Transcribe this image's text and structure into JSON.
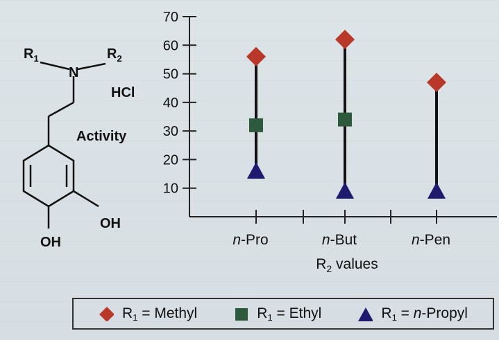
{
  "structure": {
    "r1_label": "R",
    "r1_sub": "1",
    "r2_label": "R",
    "r2_sub": "2",
    "n_label": "N",
    "salt_label": "HCl",
    "activity_label": "Activity",
    "oh_upper": "OH",
    "oh_lower": "OH"
  },
  "chart_data": {
    "type": "dot-range",
    "xlabel": "R2 values",
    "ylabel": "",
    "ylim": [
      0,
      70
    ],
    "y_ticks": [
      10,
      20,
      30,
      40,
      50,
      60,
      70
    ],
    "categories": [
      "n-Pro",
      "n-But",
      "n-Pen"
    ],
    "series": [
      {
        "name": "R1 = Methyl",
        "marker": "diamond",
        "color": "#b8382a",
        "values": [
          56,
          62,
          47
        ]
      },
      {
        "name": "R1 = Ethyl",
        "marker": "square",
        "color": "#2d5a3c",
        "values": [
          32,
          34,
          null
        ]
      },
      {
        "name": "R1 = n-Propyl",
        "marker": "triangle",
        "color": "#1e1a6e",
        "values": [
          16,
          9,
          9
        ]
      }
    ]
  },
  "legend": {
    "items": [
      {
        "prefix": "R",
        "sub": "1",
        "text": " = Methyl",
        "marker": "diamond",
        "color": "#b8382a"
      },
      {
        "prefix": "R",
        "sub": "1",
        "text": " = Ethyl",
        "marker": "square",
        "color": "#2d5a3c"
      },
      {
        "prefix": "R",
        "sub": "1",
        "text": " = n-Propyl",
        "marker": "triangle",
        "color": "#1e1a6e"
      }
    ]
  }
}
